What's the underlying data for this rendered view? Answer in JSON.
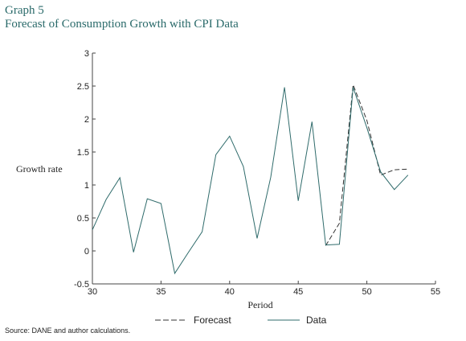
{
  "header": {
    "graph_number": "Graph 5",
    "title": "Forecast of Consumption Growth with CPI Data"
  },
  "footer": {
    "source": "Source: DANE and author calculations."
  },
  "colors": {
    "data_line": "#2f6b6b",
    "forecast_line": "#333333",
    "axis": "#444444",
    "title": "#2a6a6a"
  },
  "chart_data": {
    "type": "line",
    "xlabel": "Period",
    "ylabel": "Growth rate",
    "xlim": [
      30,
      55
    ],
    "ylim": [
      -0.5,
      3
    ],
    "xticks": [
      30,
      35,
      40,
      45,
      50,
      55
    ],
    "yticks": [
      -0.5,
      0,
      0.5,
      1,
      1.5,
      2,
      2.5,
      3
    ],
    "ytick_labels": [
      "-0.5",
      "0",
      "0.5",
      "1",
      "1.5",
      "2",
      "2.5",
      "3"
    ],
    "grid": false,
    "legend_position": "bottom",
    "series": [
      {
        "name": "Forecast",
        "style": "dashed",
        "x": [
          47,
          48,
          49,
          50,
          51,
          52,
          53
        ],
        "y": [
          0.08,
          0.42,
          2.52,
          1.98,
          1.15,
          1.23,
          1.24
        ]
      },
      {
        "name": "Data",
        "style": "solid",
        "x": [
          30,
          31,
          32,
          33,
          34,
          35,
          36,
          37,
          38,
          39,
          40,
          41,
          42,
          43,
          44,
          45,
          46,
          47,
          48,
          49,
          50,
          51,
          52,
          53
        ],
        "y": [
          0.32,
          0.78,
          1.11,
          -0.02,
          0.79,
          0.72,
          -0.34,
          -0.02,
          0.29,
          1.46,
          1.74,
          1.28,
          0.19,
          1.12,
          2.48,
          0.76,
          1.96,
          0.09,
          0.1,
          2.48,
          1.87,
          1.2,
          0.93,
          1.15
        ]
      }
    ]
  }
}
